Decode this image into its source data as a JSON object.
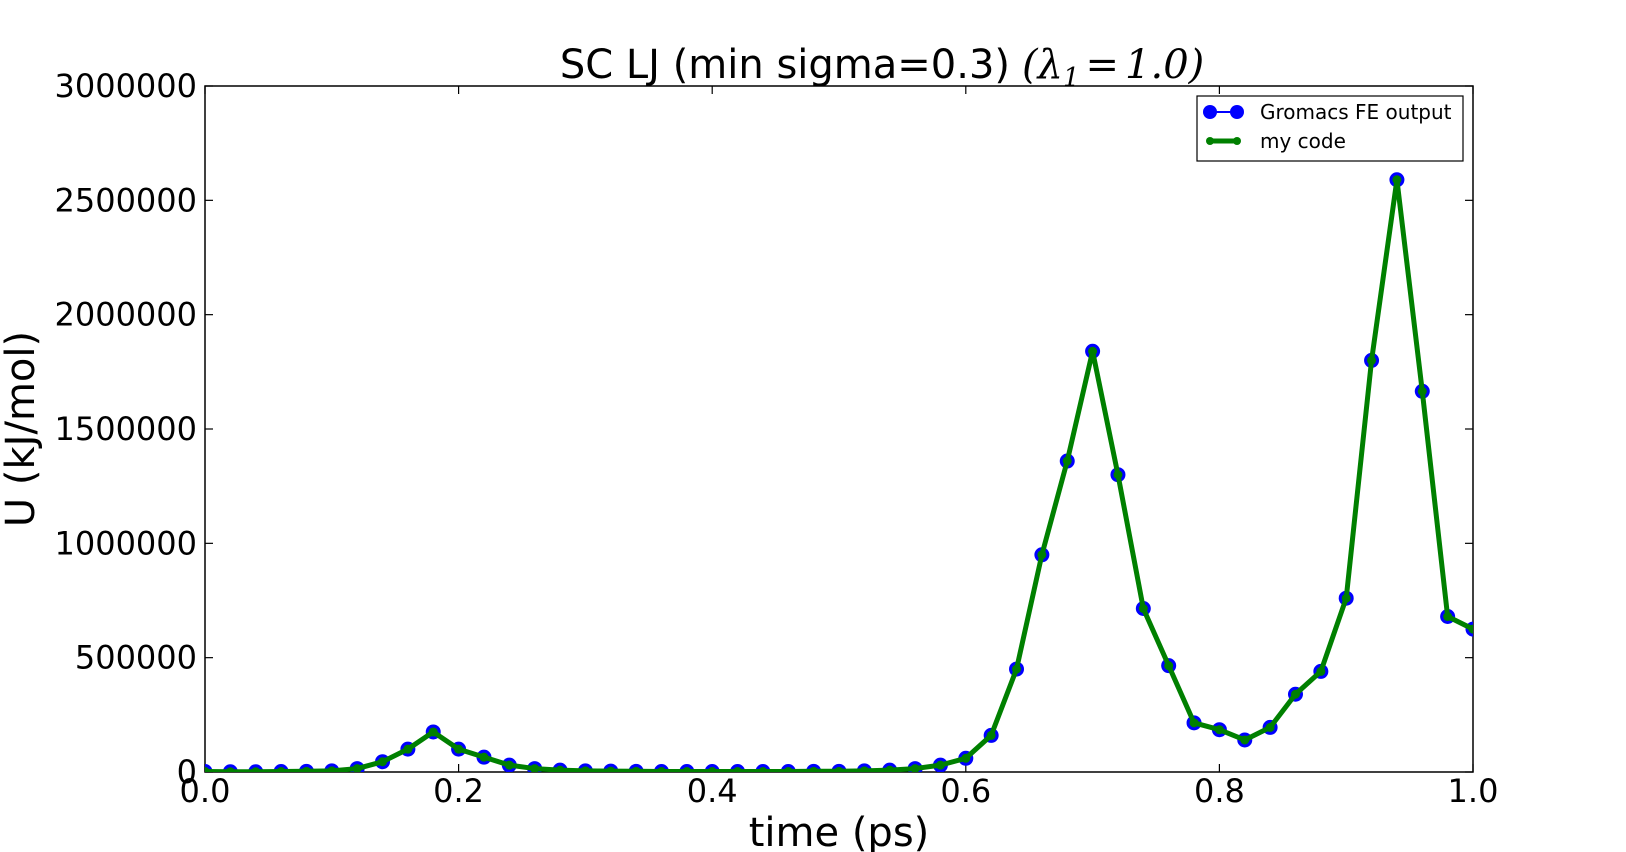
{
  "chart_data": {
    "type": "line",
    "title": "SC LJ (min sigma=0.3)",
    "title_math": {
      "symbol": "λ",
      "subscript": "1",
      "equals": "=",
      "value": "1.0"
    },
    "xlabel": "time (ps)",
    "ylabel": "U (kJ/mol)",
    "xlim": [
      0.0,
      1.0
    ],
    "ylim": [
      0,
      3000000
    ],
    "x_ticks": [
      0.0,
      0.2,
      0.4,
      0.6,
      0.8,
      1.0
    ],
    "x_tick_labels": [
      "0.0",
      "0.2",
      "0.4",
      "0.6",
      "0.8",
      "1.0"
    ],
    "y_ticks": [
      0,
      500000,
      1000000,
      1500000,
      2000000,
      2500000,
      3000000
    ],
    "y_tick_labels": [
      "0",
      "500000",
      "1000000",
      "1500000",
      "2000000",
      "2500000",
      "3000000"
    ],
    "grid": false,
    "legend_position": "top-right",
    "x": [
      0.0,
      0.02,
      0.04,
      0.06,
      0.08,
      0.1,
      0.12,
      0.14,
      0.16,
      0.18,
      0.2,
      0.22,
      0.24,
      0.26,
      0.28,
      0.3,
      0.32,
      0.34,
      0.36,
      0.38,
      0.4,
      0.42,
      0.44,
      0.46,
      0.48,
      0.5,
      0.52,
      0.54,
      0.56,
      0.58,
      0.6,
      0.62,
      0.64,
      0.66,
      0.68,
      0.7,
      0.72,
      0.74,
      0.76,
      0.78,
      0.8,
      0.82,
      0.84,
      0.86,
      0.88,
      0.9,
      0.92,
      0.94,
      0.96,
      0.98,
      1.0
    ],
    "series": [
      {
        "name": "Gromacs FE output",
        "color": "#0000ff",
        "style": "line-with-large-markers",
        "values": [
          2000,
          1000,
          1000,
          2000,
          3000,
          5000,
          15000,
          45000,
          100000,
          175000,
          100000,
          65000,
          30000,
          15000,
          8000,
          5000,
          4000,
          3000,
          2000,
          2000,
          2000,
          2000,
          2000,
          2000,
          3000,
          3000,
          5000,
          8000,
          15000,
          30000,
          60000,
          160000,
          450000,
          950000,
          1360000,
          1840000,
          1300000,
          715000,
          465000,
          215000,
          185000,
          140000,
          195000,
          340000,
          440000,
          760000,
          1800000,
          2590000,
          1665000,
          680000,
          625000
        ]
      },
      {
        "name": "my code",
        "color": "#008000",
        "style": "thick-line-with-small-markers",
        "values": [
          2000,
          1000,
          1000,
          2000,
          3000,
          5000,
          15000,
          45000,
          100000,
          175000,
          100000,
          65000,
          30000,
          15000,
          8000,
          5000,
          4000,
          3000,
          2000,
          2000,
          2000,
          2000,
          2000,
          2000,
          3000,
          3000,
          5000,
          8000,
          15000,
          30000,
          60000,
          160000,
          450000,
          950000,
          1360000,
          1840000,
          1300000,
          715000,
          465000,
          215000,
          185000,
          140000,
          195000,
          340000,
          440000,
          760000,
          1800000,
          2590000,
          1665000,
          680000,
          625000
        ]
      }
    ]
  }
}
